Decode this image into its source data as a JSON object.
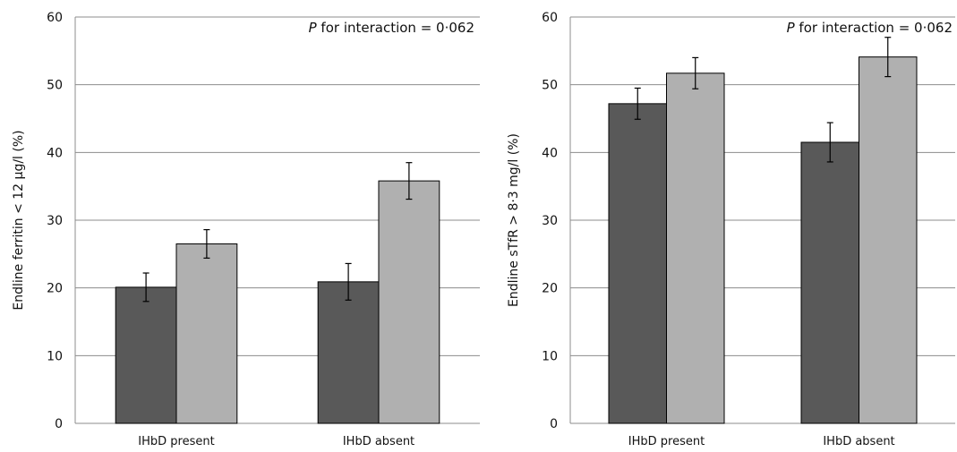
{
  "chart_data": [
    {
      "type": "bar",
      "title": "",
      "annotation_p": "P",
      "annotation_rest": " for interaction = 0·062",
      "xlabel": "",
      "ylabel": "Endline ferritin < 12 µg/l (%)",
      "ylim": [
        0,
        60
      ],
      "yticks": [
        0,
        10,
        20,
        30,
        40,
        50,
        60
      ],
      "grid": true,
      "categories": [
        "IHbD present",
        "IHbD absent"
      ],
      "series": [
        {
          "color": "#595959",
          "values": [
            20.1,
            20.9
          ],
          "error": [
            2.1,
            2.7
          ]
        },
        {
          "color": "#b0b0b0",
          "values": [
            26.5,
            35.8
          ],
          "error": [
            2.1,
            2.7
          ]
        }
      ]
    },
    {
      "type": "bar",
      "title": "",
      "annotation_p": "P",
      "annotation_rest": " for interaction = 0·062",
      "xlabel": "",
      "ylabel": "Endline sTfR > 8·3 mg/l (%)",
      "ylim": [
        0,
        60
      ],
      "yticks": [
        0,
        10,
        20,
        30,
        40,
        50,
        60
      ],
      "grid": true,
      "categories": [
        "IHbD present",
        "IHbD absent"
      ],
      "series": [
        {
          "color": "#595959",
          "values": [
            47.2,
            41.5
          ],
          "error": [
            2.3,
            2.9
          ]
        },
        {
          "color": "#b0b0b0",
          "values": [
            51.7,
            54.1
          ],
          "error": [
            2.3,
            2.9
          ]
        }
      ]
    }
  ]
}
